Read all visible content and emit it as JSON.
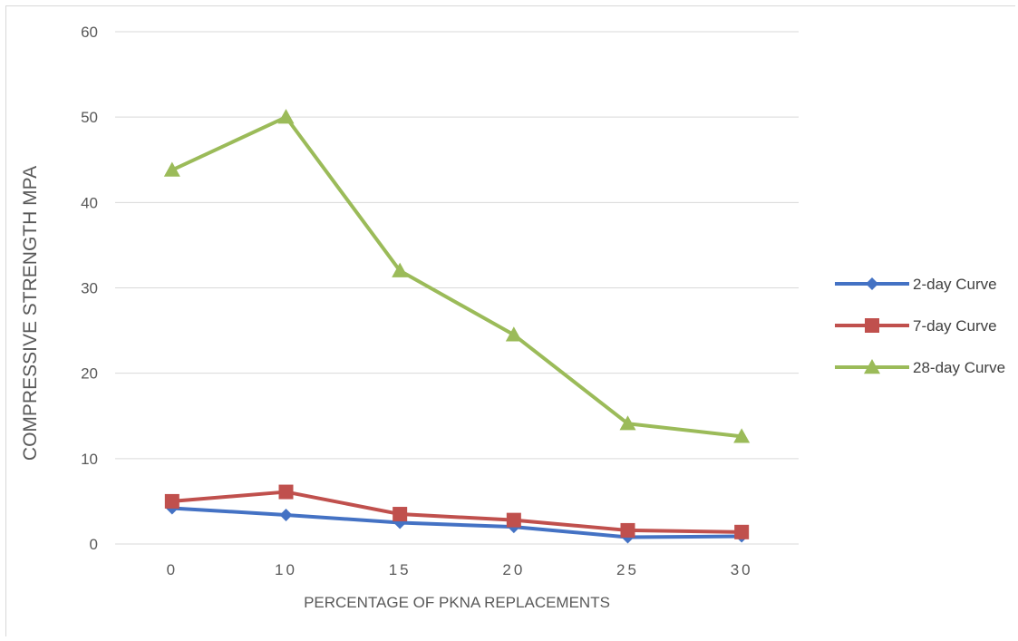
{
  "chart_data": {
    "type": "line",
    "title": "",
    "xlabel": "PERCENTAGE OF PKNA REPLACEMENTS",
    "ylabel": "COMPRESSIVE STRENGTH MPA",
    "categories": [
      "0",
      "10",
      "15",
      "20",
      "25",
      "30"
    ],
    "ylim": [
      0,
      60
    ],
    "yticks": [
      "0",
      "10",
      "20",
      "30",
      "40",
      "50",
      "60"
    ],
    "grid": true,
    "legend_position": "right",
    "series": [
      {
        "name": "2-day Curve",
        "color": "#4472c4",
        "marker": "diamond",
        "values": [
          4.2,
          3.4,
          2.5,
          2.0,
          0.8,
          0.9
        ]
      },
      {
        "name": "7-day Curve",
        "color": "#c0504d",
        "marker": "square",
        "values": [
          5.0,
          6.1,
          3.5,
          2.8,
          1.6,
          1.4
        ]
      },
      {
        "name": "28-day Curve",
        "color": "#9bbb59",
        "marker": "triangle",
        "values": [
          43.8,
          50.0,
          32.0,
          24.5,
          14.1,
          12.6
        ]
      }
    ]
  }
}
